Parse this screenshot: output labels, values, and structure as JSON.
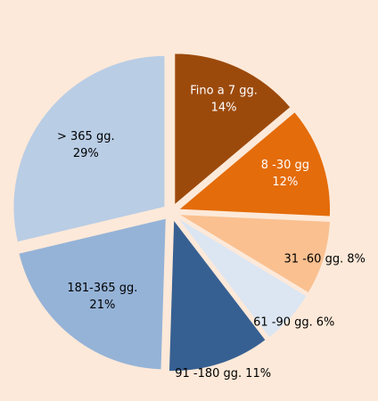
{
  "chart_data": {
    "type": "pie",
    "categories": [
      "Fino a 7 gg.",
      "8 -30 gg",
      "31 -60 gg.",
      "61 -90 gg.",
      "91 -180 gg.",
      "181-365 gg.",
      "> 365 gg."
    ],
    "values": [
      14,
      12,
      8,
      6,
      11,
      21,
      29
    ],
    "value_labels": [
      "14%",
      "12%",
      "8%",
      "6%",
      "11%",
      "21%",
      "29%"
    ],
    "colors": [
      "#9c4a0c",
      "#e46c0a",
      "#fac090",
      "#dce6f2",
      "#376092",
      "#95b3d7",
      "#b9cde5"
    ]
  }
}
